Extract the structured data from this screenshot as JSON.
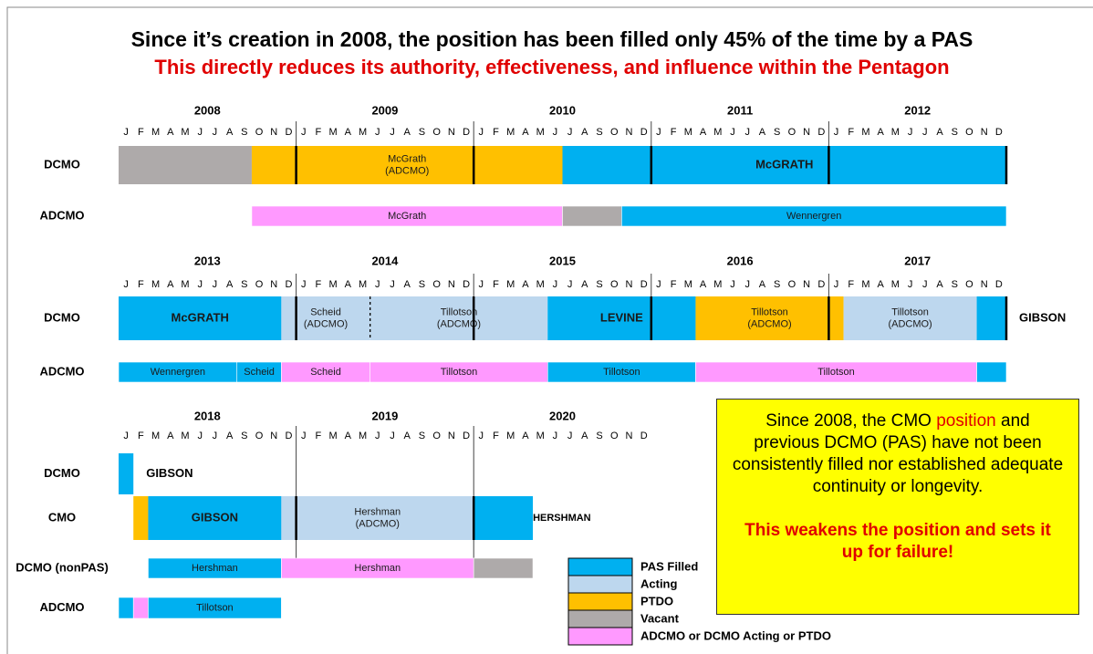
{
  "title": "Since it’s creation in 2008, the position has been filled only 45% of the time by a PAS",
  "subtitle": "This directly reduces its authority, effectiveness, and influence within the Pentagon",
  "months": [
    "J",
    "F",
    "M",
    "A",
    "M",
    "J",
    "J",
    "A",
    "S",
    "O",
    "N",
    "D"
  ],
  "panels": [
    {
      "years": [
        "2008",
        "2009",
        "2010",
        "2011",
        "2012"
      ],
      "rows": [
        {
          "label": "DCMO",
          "segments": [
            {
              "start": "2008-01",
              "end": "2008-09",
              "color": "#aeaaaa"
            },
            {
              "start": "2008-10",
              "end": "2010-06",
              "color": "#ffc000",
              "label": [
                "McGrath",
                "(ADCMO)"
              ]
            },
            {
              "start": "2010-07",
              "end": "2012-12",
              "color": "#00b0f0",
              "label": [
                "McGRATH"
              ],
              "bold": true
            }
          ]
        },
        {
          "label": "ADCMO",
          "segments": [
            {
              "start": "2008-10",
              "end": "2010-06",
              "color": "#ff99ff",
              "label": [
                "McGrath"
              ]
            },
            {
              "start": "2010-07",
              "end": "2010-10",
              "color": "#aeaaaa"
            },
            {
              "start": "2010-11",
              "end": "2012-12",
              "color": "#00b0f0",
              "label": [
                "Wennergren"
              ]
            }
          ]
        }
      ]
    },
    {
      "years": [
        "2013",
        "2014",
        "2015",
        "2016",
        "2017"
      ],
      "rows": [
        {
          "label": "DCMO",
          "note": "GIBSON",
          "segments": [
            {
              "start": "2013-01",
              "end": "2013-11",
              "color": "#00b0f0",
              "label": [
                "McGRATH"
              ],
              "bold": true
            },
            {
              "start": "2013-12",
              "end": "2014-05",
              "color": "#bdd7ee",
              "label": [
                "Scheid",
                "(ADCMO)"
              ]
            },
            {
              "start": "2014-06",
              "end": "2015-05",
              "color": "#bdd7ee",
              "label": [
                "Tillotson",
                "(ADCMO)"
              ]
            },
            {
              "start": "2015-06",
              "end": "2016-03",
              "color": "#00b0f0",
              "label": [
                "LEVINE"
              ],
              "bold": true
            },
            {
              "start": "2016-04",
              "end": "2017-01",
              "color": "#ffc000",
              "label": [
                "Tillotson",
                "(ADCMO)"
              ]
            },
            {
              "start": "2017-02",
              "end": "2017-10",
              "color": "#bdd7ee",
              "label": [
                "Tillotson",
                "(ADCMO)"
              ]
            },
            {
              "start": "2017-11",
              "end": "2017-12",
              "color": "#00b0f0"
            }
          ]
        },
        {
          "label": "ADCMO",
          "segments": [
            {
              "start": "2013-01",
              "end": "2013-08",
              "color": "#00b0f0",
              "label": [
                "Wennergren"
              ]
            },
            {
              "start": "2013-09",
              "end": "2013-11",
              "color": "#00b0f0",
              "label": [
                "Scheid"
              ]
            },
            {
              "start": "2013-12",
              "end": "2014-05",
              "color": "#ff99ff",
              "label": [
                "Scheid"
              ]
            },
            {
              "start": "2014-06",
              "end": "2015-05",
              "color": "#ff99ff",
              "label": [
                "Tillotson"
              ]
            },
            {
              "start": "2015-06",
              "end": "2016-03",
              "color": "#00b0f0",
              "label": [
                "Tillotson"
              ]
            },
            {
              "start": "2016-04",
              "end": "2017-10",
              "color": "#ff99ff",
              "label": [
                "Tillotson"
              ]
            },
            {
              "start": "2017-11",
              "end": "2017-12",
              "color": "#00b0f0"
            }
          ]
        }
      ]
    },
    {
      "years": [
        "2018",
        "2019",
        "2020"
      ],
      "rows": [
        {
          "label": "DCMO",
          "note": "GIBSON",
          "segments": [
            {
              "start": "2018-01",
              "end": "2018-01",
              "color": "#00b0f0"
            }
          ]
        },
        {
          "label": "CMO",
          "note": "HERSHMAN",
          "segments": [
            {
              "start": "2018-02",
              "end": "2018-02",
              "color": "#ffc000"
            },
            {
              "start": "2018-03",
              "end": "2018-11",
              "color": "#00b0f0",
              "label": [
                "GIBSON"
              ],
              "bold": true
            },
            {
              "start": "2018-12",
              "end": "2019-12",
              "color": "#bdd7ee",
              "label": [
                "Hershman",
                "(ADCMO)"
              ]
            },
            {
              "start": "2020-01",
              "end": "2020-04",
              "color": "#00b0f0"
            }
          ]
        },
        {
          "label": "DCMO (nonPAS)",
          "segments": [
            {
              "start": "2018-03",
              "end": "2018-11",
              "color": "#00b0f0",
              "label": [
                "Hershman"
              ]
            },
            {
              "start": "2018-12",
              "end": "2019-12",
              "color": "#ff99ff",
              "label": [
                "Hershman"
              ]
            },
            {
              "start": "2020-01",
              "end": "2020-04",
              "color": "#aeaaaa"
            }
          ]
        },
        {
          "label": "ADCMO",
          "segments": [
            {
              "start": "2018-01",
              "end": "2018-01",
              "color": "#00b0f0"
            },
            {
              "start": "2018-02",
              "end": "2018-02",
              "color": "#ff99ff"
            },
            {
              "start": "2018-03",
              "end": "2018-11",
              "color": "#00b0f0",
              "label": [
                "Tillotson"
              ]
            }
          ]
        }
      ]
    }
  ],
  "legend": [
    {
      "label": "PAS Filled",
      "color": "#00b0f0"
    },
    {
      "label": "Acting",
      "color": "#bdd7ee"
    },
    {
      "label": "PTDO",
      "color": "#ffc000"
    },
    {
      "label": "Vacant",
      "color": "#aeaaaa"
    },
    {
      "label": "ADCMO or DCMO Acting or PTDO",
      "color": "#ff99ff"
    }
  ],
  "callout": {
    "before": "Since 2008, the CMO ",
    "highlight": "position",
    "after": " and previous DCMO (PAS) have not been consistently filled nor established adequate continuity or longevity.",
    "conclusion": "This weakens the position and sets it up for failure!"
  }
}
